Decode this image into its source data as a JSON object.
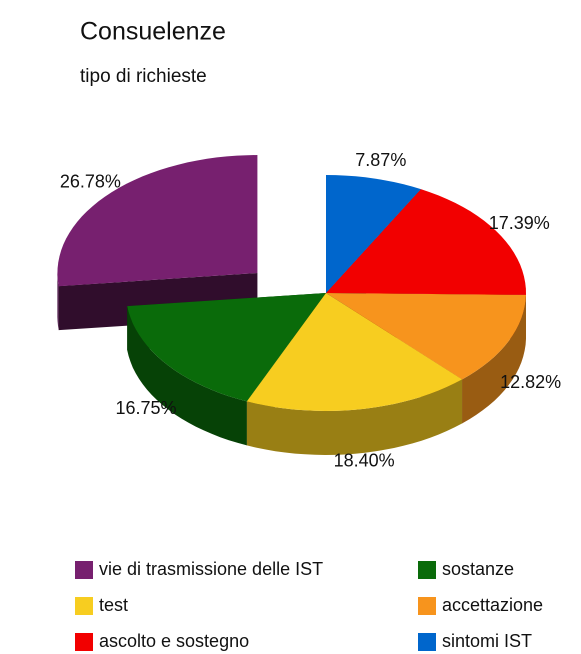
{
  "chart_data": {
    "type": "pie",
    "title": "Consuelenze",
    "subtitle": "tipo di richieste",
    "categories": [
      "vie di trasmissione delle IST",
      "sostanze",
      "test",
      "accettazione",
      "ascolto e sostegno",
      "sintomi IST"
    ],
    "values": [
      26.78,
      16.75,
      18.4,
      12.82,
      17.39,
      7.87
    ],
    "value_labels": [
      "26.78%",
      "16.75%",
      "18.40%",
      "12.82%",
      "17.39%",
      "7.87%"
    ],
    "colors": [
      "#77206f",
      "#0a6b0a",
      "#f7cd20",
      "#f7941d",
      "#f20000",
      "#0066cc"
    ],
    "explode": [
      true,
      false,
      false,
      false,
      false,
      false
    ],
    "legend": "bottom"
  }
}
